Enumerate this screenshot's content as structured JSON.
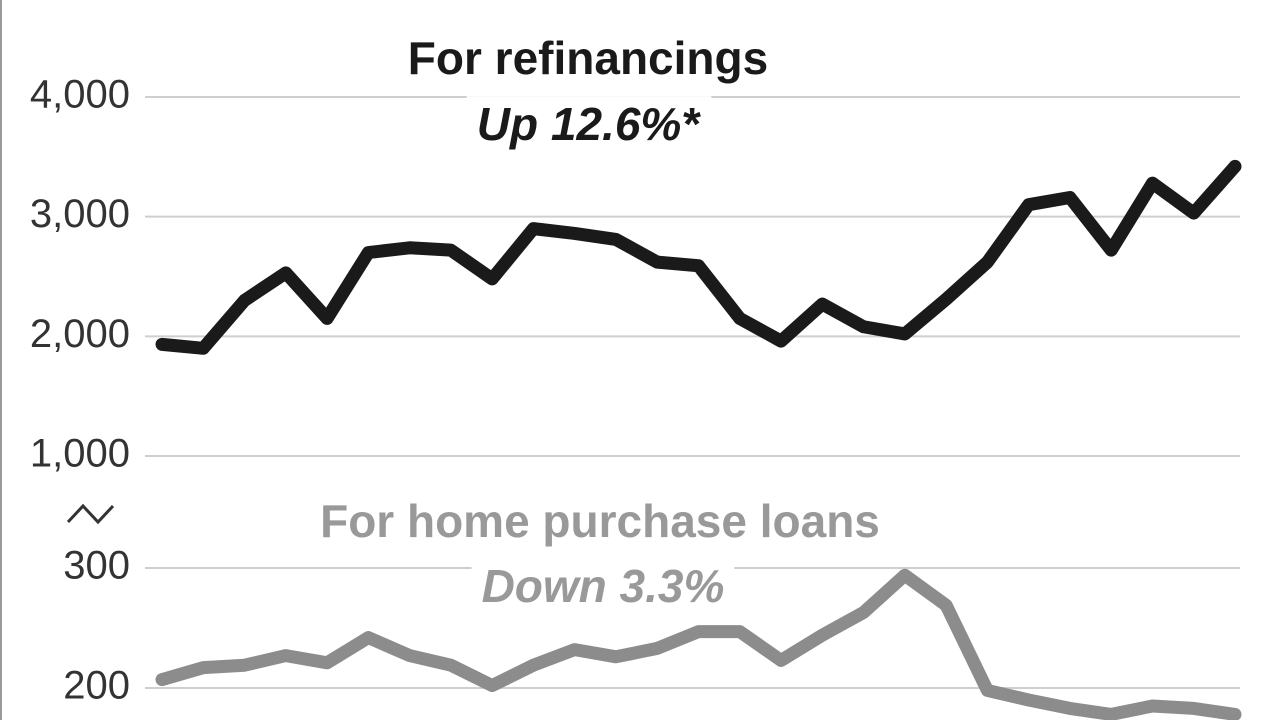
{
  "chart_data": [
    {
      "type": "line",
      "title": "For refinancings",
      "subtitle": "Up 12.6%*",
      "ylim": [
        1000,
        4000
      ],
      "yticks": [
        {
          "value": 1000,
          "label": "1,000"
        },
        {
          "value": 2000,
          "label": "2,000"
        },
        {
          "value": 3000,
          "label": "3,000"
        },
        {
          "value": 4000,
          "label": "4,000"
        }
      ],
      "grid": true,
      "title_color": "#1a1a1a",
      "series": [
        {
          "name": "For refinancings",
          "color": "#1a1a1a",
          "values": [
            1933,
            1900,
            2300,
            2530,
            2150,
            2700,
            2740,
            2720,
            2480,
            2900,
            2860,
            2810,
            2620,
            2590,
            2150,
            1960,
            2270,
            2080,
            2020,
            2310,
            2620,
            3100,
            3160,
            2720,
            3280,
            3030,
            3420
          ]
        }
      ]
    },
    {
      "type": "line",
      "title": "For home purchase loans",
      "subtitle": "Down 3.3%",
      "ylim": [
        175,
        300
      ],
      "yticks": [
        200,
        300
      ],
      "grid": true,
      "title_color": "#999999",
      "series": [
        {
          "name": "For home purchase loans",
          "color": "#8c8c8c",
          "values": [
            207,
            217,
            219,
            227,
            221,
            242,
            227,
            219,
            202,
            219,
            232,
            226,
            233,
            247,
            247,
            223,
            244,
            263,
            294,
            269,
            198,
            190,
            183,
            178,
            185,
            183,
            178
          ]
        }
      ]
    }
  ]
}
